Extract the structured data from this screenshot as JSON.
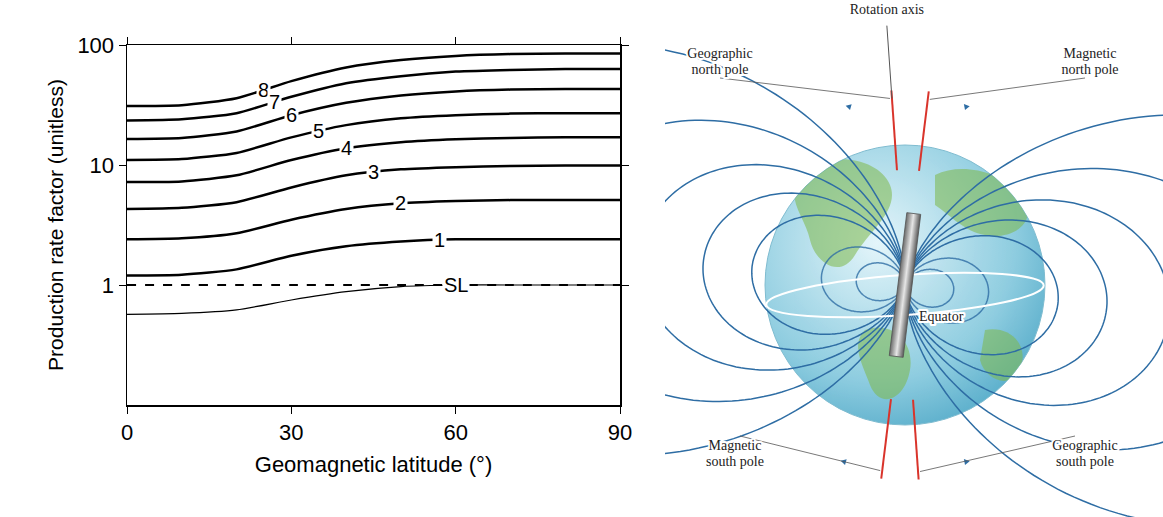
{
  "chart_data": {
    "type": "line",
    "x": [
      0,
      10,
      20,
      30,
      40,
      50,
      60,
      70,
      80,
      90
    ],
    "series": [
      {
        "name": "8",
        "values": [
          31,
          31.5,
          36,
          50,
          65,
          75,
          81,
          84,
          85,
          85
        ]
      },
      {
        "name": "7",
        "values": [
          23.5,
          24,
          27,
          37,
          48,
          55,
          60,
          62,
          63,
          63
        ]
      },
      {
        "name": "6",
        "values": [
          16.5,
          16.8,
          19,
          26,
          33,
          38,
          41,
          42.5,
          43,
          43
        ]
      },
      {
        "name": "5",
        "values": [
          11,
          11.2,
          12.6,
          17,
          21.5,
          24.5,
          26,
          26.8,
          27,
          27
        ]
      },
      {
        "name": "4",
        "values": [
          7.2,
          7.3,
          8.2,
          11,
          13.8,
          15.5,
          16.4,
          16.8,
          17,
          17
        ]
      },
      {
        "name": "3",
        "values": [
          4.3,
          4.4,
          4.9,
          6.5,
          8.2,
          9.2,
          9.6,
          9.8,
          9.9,
          9.9
        ]
      },
      {
        "name": "2",
        "values": [
          2.4,
          2.45,
          2.7,
          3.5,
          4.3,
          4.8,
          5.0,
          5.1,
          5.1,
          5.1
        ]
      },
      {
        "name": "1",
        "values": [
          1.2,
          1.22,
          1.35,
          1.75,
          2.1,
          2.3,
          2.4,
          2.4,
          2.4,
          2.4
        ]
      },
      {
        "name": "SL",
        "values": [
          0.57,
          0.58,
          0.62,
          0.75,
          0.88,
          0.97,
          1.0,
          1.0,
          1.0,
          1.0
        ],
        "line_style": "thin"
      },
      {
        "values": [
          1,
          1,
          1,
          1,
          1,
          1,
          1,
          1,
          1,
          1
        ],
        "line_style": "dashed"
      }
    ],
    "xlabel": "Geomagnetic latitude (°)",
    "ylabel": "Production rate factor (unitless)",
    "xlim": [
      0,
      90
    ],
    "xticks": [
      0,
      30,
      60,
      90
    ],
    "ylim": [
      0.1,
      100
    ],
    "yticks": [
      1,
      10,
      100
    ],
    "log": "y",
    "grid": false,
    "color": "#000000"
  },
  "diagram": {
    "rotation_axis": "Rotation axis",
    "geographic_north_pole": "Geographic north pole",
    "magnetic_north_pole": "Magnetic north pole",
    "equator": "Equator",
    "magnetic_south_pole": "Magnetic south pole",
    "geographic_south_pole": "Geographic south pole"
  }
}
